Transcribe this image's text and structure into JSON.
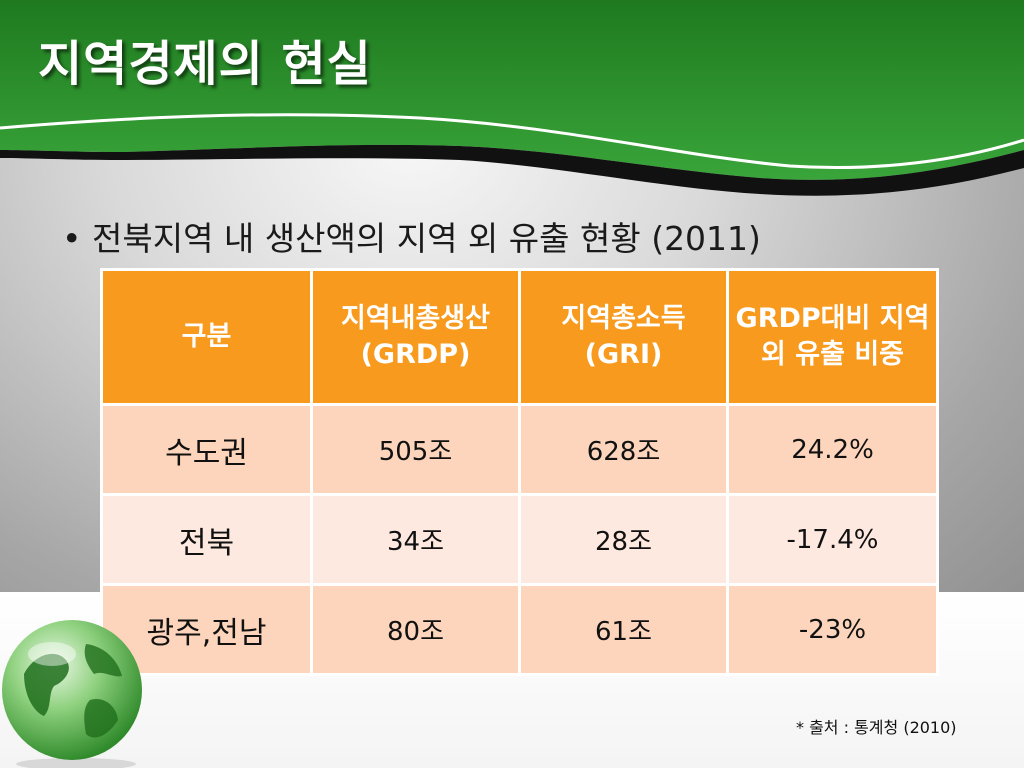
{
  "slide": {
    "title": "지역경제의 현실",
    "bullet_text": "전북지역 내 생산액의 지역 외 유출 현황 (2011)",
    "source_note": "* 출처 : 통계청 (2010)",
    "colors": {
      "header_green": "#2a8c2a",
      "table_header": "#f79a1e",
      "row_odd": "#fcd5bc",
      "row_even": "#fde9df"
    }
  },
  "table": {
    "headers": [
      "구분",
      "지역내총생산(GRDP)",
      "지역총소득(GRI)",
      "GRDP대비 지역 외 유출 비중"
    ],
    "rows": [
      {
        "label": "수도권",
        "grdp": "505조",
        "gri": "628조",
        "ratio": "24.2%"
      },
      {
        "label": "전북",
        "grdp": "34조",
        "gri": "28조",
        "ratio": "-17.4%"
      },
      {
        "label": "광주,전남",
        "grdp": "80조",
        "gri": "61조",
        "ratio": "-23%"
      }
    ]
  }
}
